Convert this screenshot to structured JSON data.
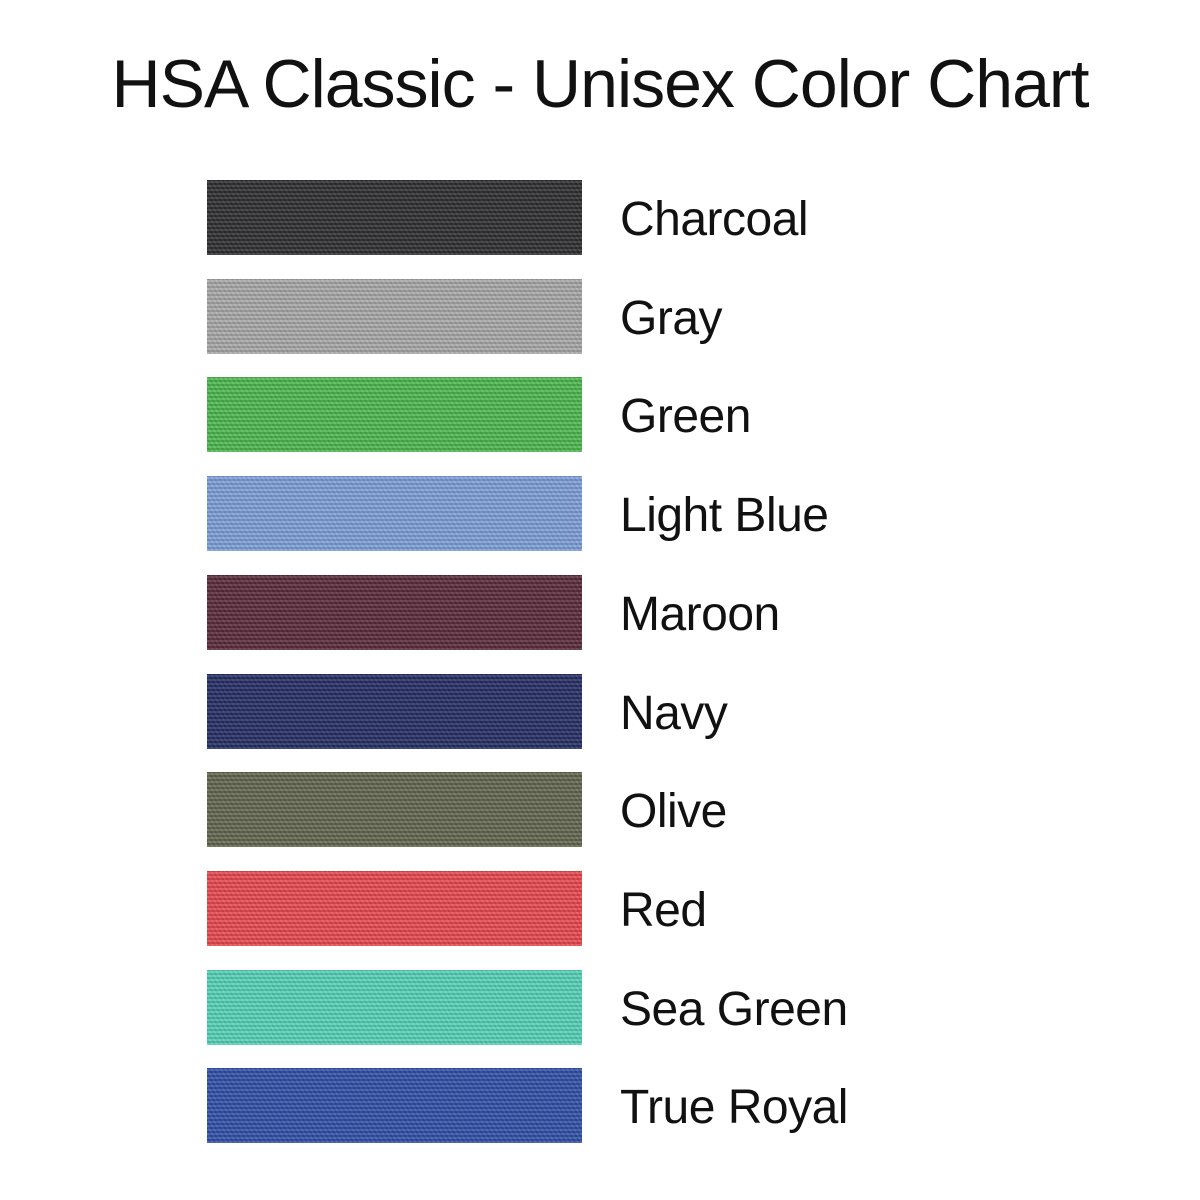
{
  "title": "HSA Classic - Unisex Color Chart",
  "swatches": [
    {
      "name": "Charcoal",
      "color": "#2e2e30"
    },
    {
      "name": "Gray",
      "color": "#a9a8a8"
    },
    {
      "name": "Green",
      "color": "#4db84f"
    },
    {
      "name": "Light Blue",
      "color": "#7d9fd9"
    },
    {
      "name": "Maroon",
      "color": "#5a2a3a"
    },
    {
      "name": "Navy",
      "color": "#252e63"
    },
    {
      "name": "Olive",
      "color": "#636650"
    },
    {
      "name": "Red",
      "color": "#e8484f"
    },
    {
      "name": "Sea Green",
      "color": "#55d2b6"
    },
    {
      "name": "True Royal",
      "color": "#3150a8"
    }
  ]
}
